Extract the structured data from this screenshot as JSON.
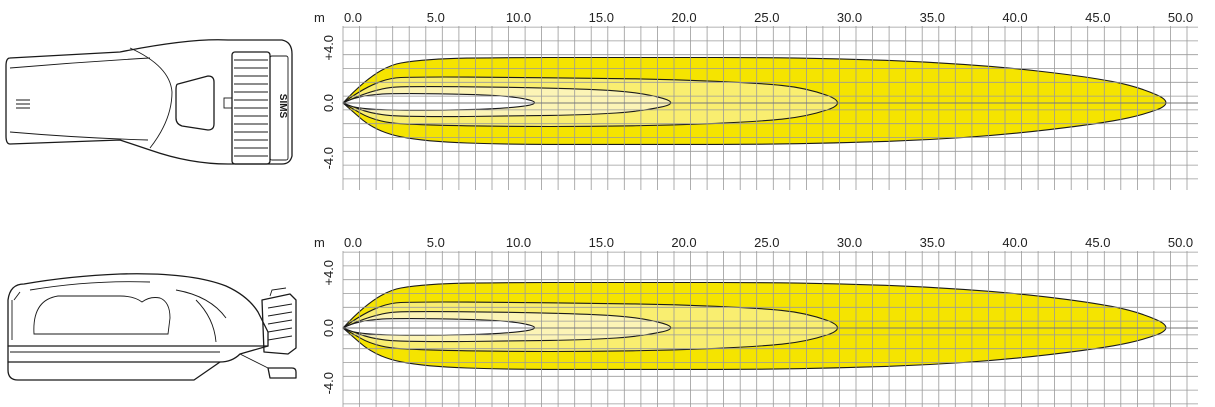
{
  "diagrams": [
    {
      "view": "top",
      "unit_label": "m",
      "x_ticks": [
        "0.0",
        "5.0",
        "10.0",
        "15.0",
        "20.0",
        "25.0",
        "30.0",
        "35.0",
        "40.0",
        "45.0",
        "50.0"
      ],
      "y_ticks": [
        "+4.0",
        "0.0",
        "-4.0"
      ],
      "logo_text": "SIMS"
    },
    {
      "view": "side",
      "unit_label": "m",
      "x_ticks": [
        "0.0",
        "5.0",
        "10.0",
        "15.0",
        "20.0",
        "25.0",
        "30.0",
        "35.0",
        "40.0",
        "45.0",
        "50.0"
      ],
      "y_ticks": [
        "+4.0",
        "0.0",
        "-4.0"
      ]
    }
  ],
  "colors": {
    "outer_zone": "#f5e400",
    "middle_zone": "#f9ee70",
    "inner_zone": "#fcf4b6",
    "core_zone": "#ffffff",
    "grid": "#9a9a9a"
  },
  "chart_data": {
    "type": "area",
    "x_unit": "m",
    "y_unit": "m",
    "xlim": [
      0,
      52.5
    ],
    "ylim": [
      -4.0,
      4.0
    ],
    "x_ticks": [
      0,
      5,
      10,
      15,
      20,
      25,
      30,
      35,
      40,
      45,
      50
    ],
    "y_ticks": [
      4.0,
      0.0,
      -4.0
    ],
    "grid": true,
    "series": [
      {
        "zone": "outer",
        "color": "#f5e400",
        "x": [
          0,
          2,
          5,
          10,
          15,
          20,
          25,
          30,
          35,
          40,
          45,
          48,
          50.3
        ],
        "top": [
          0.0,
          2.6,
          3.2,
          3.3,
          3.3,
          3.3,
          3.3,
          3.2,
          3.0,
          2.6,
          1.9,
          1.2,
          0.0
        ],
        "bottom": [
          0.0,
          -2.1,
          -2.8,
          -3.0,
          -3.0,
          -3.0,
          -3.0,
          -2.9,
          -2.7,
          -2.3,
          -1.6,
          -1.0,
          0.0
        ]
      },
      {
        "zone": "middle",
        "color": "#f9ee70",
        "x": [
          0,
          2,
          5,
          10,
          15,
          20,
          25,
          28,
          30.5
        ],
        "top": [
          0.0,
          1.8,
          1.9,
          1.85,
          1.8,
          1.7,
          1.45,
          1.1,
          0.0
        ],
        "bottom": [
          0.0,
          -1.4,
          -1.6,
          -1.7,
          -1.7,
          -1.6,
          -1.35,
          -1.0,
          0.0
        ]
      },
      {
        "zone": "inner",
        "color": "#fcf4b6",
        "x": [
          0,
          2,
          5,
          10,
          15,
          18,
          20.4
        ],
        "top": [
          0.0,
          1.15,
          1.2,
          1.15,
          1.0,
          0.75,
          0.0
        ],
        "bottom": [
          0.0,
          -0.9,
          -1.0,
          -0.95,
          -0.85,
          -0.6,
          0.0
        ]
      },
      {
        "zone": "core",
        "color": "#ffffff",
        "x": [
          0,
          1,
          5,
          10,
          12.1
        ],
        "top": [
          0.0,
          0.65,
          0.7,
          0.55,
          0.0
        ],
        "bottom": [
          0.0,
          -0.45,
          -0.55,
          -0.4,
          0.0
        ]
      }
    ]
  }
}
